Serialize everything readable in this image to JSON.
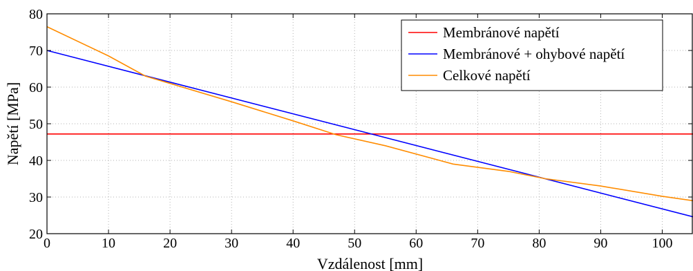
{
  "chart_data": {
    "type": "line",
    "title": "",
    "xlabel": "Vzdálenost [mm]",
    "ylabel": "Napětí [MPa]",
    "xlim": [
      0,
      105
    ],
    "ylim": [
      20,
      80
    ],
    "xticks": [
      0,
      10,
      20,
      30,
      40,
      50,
      60,
      70,
      80,
      90,
      100
    ],
    "yticks": [
      20,
      30,
      40,
      50,
      60,
      70,
      80
    ],
    "grid": true,
    "legend_position": "top-right",
    "series": [
      {
        "name": "Membránové napětí",
        "color": "#ff0000",
        "x": [
          0,
          105
        ],
        "y": [
          47.2,
          47.2
        ]
      },
      {
        "name": "Membránové + ohybové napětí",
        "color": "#0000ff",
        "x": [
          0,
          105
        ],
        "y": [
          70.0,
          24.6
        ]
      },
      {
        "name": "Celkové napětí",
        "color": "#ff8c00",
        "x": [
          0,
          10,
          16,
          20,
          30,
          40,
          47,
          55,
          66,
          75,
          81,
          90,
          100,
          105
        ],
        "y": [
          76.5,
          68.5,
          63.0,
          61.0,
          56.0,
          50.8,
          47.0,
          44.0,
          39.0,
          37.0,
          35.0,
          33.0,
          30.2,
          29.0
        ]
      }
    ]
  }
}
